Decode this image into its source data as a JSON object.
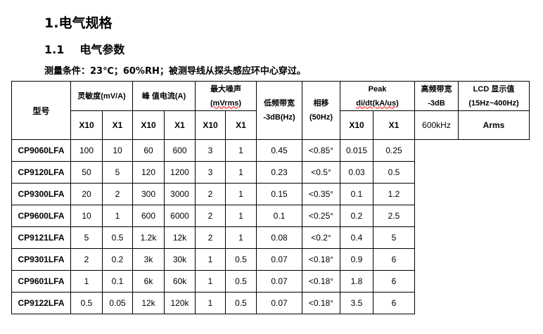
{
  "heading1": "1.电气规格",
  "heading2": {
    "number": "1.1",
    "title": "电气参数"
  },
  "condition": "测量条件：23℃；60%RH；被测导线从探头感应环中心穿过。",
  "table": {
    "headers": {
      "model": "型号",
      "sensitivity": "灵敏度(mV/A)",
      "peak_current": "峰 值电流(A)",
      "noise_line1": "最大噪声",
      "noise_line2": "(mVrms)",
      "low_bw_line1": "低频带宽",
      "low_bw_line2": "-3dB(Hz)",
      "phase_line1": "相移",
      "phase_line2": "(50Hz)",
      "didt_line1": "Peak",
      "didt_line2": "di/dt(kA/us)",
      "high_bw_line1": "高频带宽",
      "high_bw_line2": "-3dB",
      "lcd_line1": "LCD 显示值",
      "lcd_line2": "(15Hz~400Hz)",
      "x10": "X10",
      "x1": "X1"
    },
    "high_bw_value": "600kHz",
    "lcd_value": "Arms",
    "rows": [
      [
        "CP9060LFA",
        "100",
        "10",
        "60",
        "600",
        "3",
        "1",
        "0.45",
        "<0.85°",
        "0.015",
        "0.25"
      ],
      [
        "CP9120LFA",
        "50",
        "5",
        "120",
        "1200",
        "3",
        "1",
        "0.23",
        "<0.5°",
        "0.03",
        "0.5"
      ],
      [
        "CP9300LFA",
        "20",
        "2",
        "300",
        "3000",
        "2",
        "1",
        "0.15",
        "<0.35°",
        "0.1",
        "1.2"
      ],
      [
        "CP9600LFA",
        "10",
        "1",
        "600",
        "6000",
        "2",
        "1",
        "0.1",
        "<0.25°",
        "0.2",
        "2.5"
      ],
      [
        "CP9121LFA",
        "5",
        "0.5",
        "1.2k",
        "12k",
        "2",
        "1",
        "0.08",
        "<0.2°",
        "0.4",
        "5"
      ],
      [
        "CP9301LFA",
        "2",
        "0.2",
        "3k",
        "30k",
        "1",
        "0.5",
        "0.07",
        "<0.18°",
        "0.9",
        "6"
      ],
      [
        "CP9601LFA",
        "1",
        "0.1",
        "6k",
        "60k",
        "1",
        "0.5",
        "0.07",
        "<0.18°",
        "1.8",
        "6"
      ],
      [
        "CP9122LFA",
        "0.5",
        "0.05",
        "12k",
        "120k",
        "1",
        "0.5",
        "0.07",
        "<0.18°",
        "3.5",
        "6"
      ]
    ]
  }
}
